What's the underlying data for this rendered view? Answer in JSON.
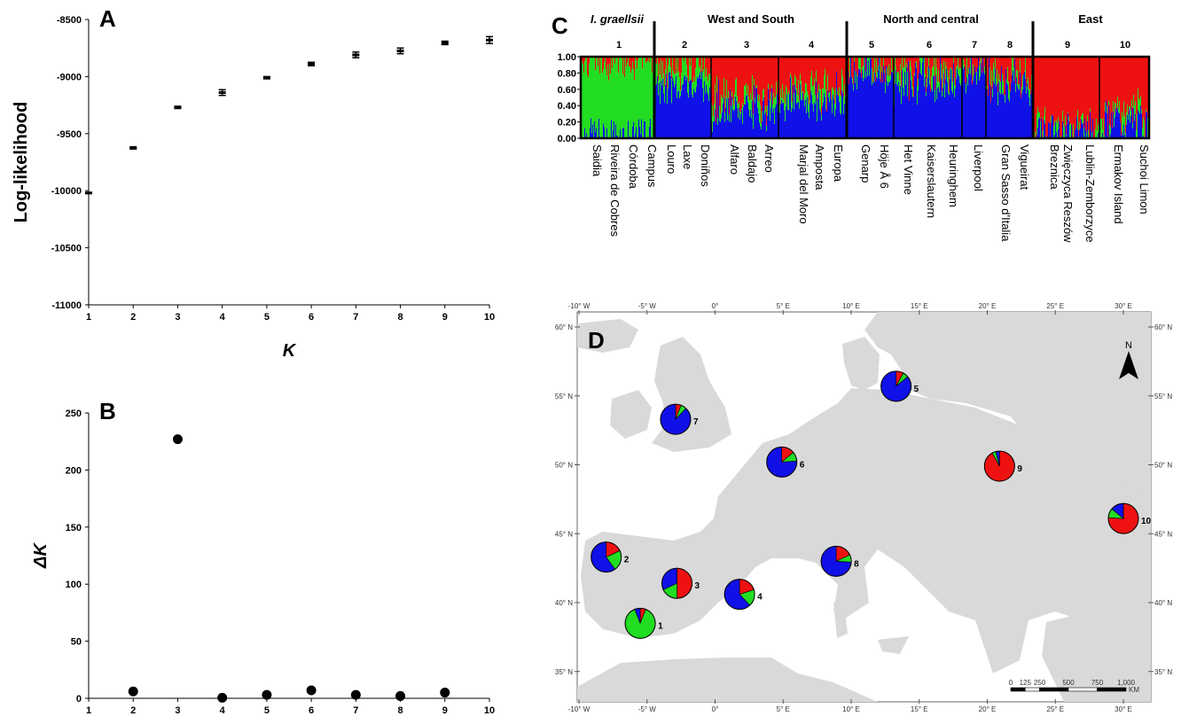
{
  "panels": {
    "a": {
      "letter": "A"
    },
    "b": {
      "letter": "B"
    },
    "c": {
      "letter": "C"
    },
    "d": {
      "letter": "D"
    }
  },
  "chart_data": [
    {
      "panel": "A",
      "type": "scatter",
      "xlabel": "K",
      "ylabel": "Log-likelihood",
      "x": [
        1,
        2,
        3,
        4,
        5,
        6,
        7,
        8,
        9,
        10
      ],
      "y": [
        -10020,
        -9625,
        -9270,
        -9140,
        -9010,
        -8890,
        -8810,
        -8775,
        -8705,
        -8680
      ],
      "error": [
        5,
        10,
        10,
        25,
        10,
        15,
        25,
        25,
        15,
        30
      ],
      "xlim": [
        1,
        10
      ],
      "ylim": [
        -11000,
        -8500
      ],
      "xticks": [
        "1",
        "2",
        "3",
        "4",
        "5",
        "6",
        "7",
        "8",
        "9",
        "10"
      ],
      "yticks": [
        "-11000",
        "-10500",
        "-10000",
        "-9500",
        "-9000",
        "-8500"
      ],
      "ytick_values": [
        -11000,
        -10500,
        -10000,
        -9500,
        -9000,
        -8500
      ],
      "grid": false
    },
    {
      "panel": "B",
      "type": "scatter",
      "xlabel": "",
      "ylabel": "ΔK",
      "x": [
        2,
        3,
        4,
        5,
        6,
        7,
        8,
        9
      ],
      "y": [
        6,
        227,
        0.5,
        3,
        7,
        3,
        2,
        5
      ],
      "xlim": [
        1,
        10
      ],
      "ylim": [
        0,
        250
      ],
      "xticks": [
        "1",
        "2",
        "3",
        "4",
        "5",
        "6",
        "7",
        "8",
        "9",
        "10"
      ],
      "yticks": [
        "0",
        "50",
        "100",
        "150",
        "200",
        "250"
      ],
      "ytick_values": [
        0,
        50,
        100,
        150,
        200,
        250
      ],
      "grid": false
    },
    {
      "panel": "C",
      "type": "bar",
      "stacked": true,
      "yticks": [
        "0.00",
        "0.20",
        "0.40",
        "0.60",
        "0.80",
        "1.00"
      ],
      "ytick_values": [
        0,
        0.2,
        0.4,
        0.6,
        0.8,
        1.0
      ],
      "ylim": [
        0,
        1
      ],
      "cluster_colors": {
        "blue": "#1010e8",
        "green": "#22dd22",
        "red": "#ee1111"
      },
      "groups": [
        {
          "name": "I. graellsii",
          "italic": true
        },
        {
          "name": "West and South"
        },
        {
          "name": "North and central"
        },
        {
          "name": "East"
        }
      ],
      "populations": [
        {
          "number": "1",
          "mean": {
            "blue": 0.03,
            "green": 0.92,
            "red": 0.05
          }
        },
        {
          "number": "2",
          "mean": {
            "blue": 0.62,
            "green": 0.22,
            "red": 0.16
          }
        },
        {
          "number": "3",
          "mean": {
            "blue": 0.35,
            "green": 0.15,
            "red": 0.5
          }
        },
        {
          "number": "4",
          "mean": {
            "blue": 0.45,
            "green": 0.15,
            "red": 0.4
          }
        },
        {
          "number": "5",
          "mean": {
            "blue": 0.8,
            "green": 0.08,
            "red": 0.12
          }
        },
        {
          "number": "6",
          "mean": {
            "blue": 0.65,
            "green": 0.15,
            "red": 0.2
          }
        },
        {
          "number": "7",
          "mean": {
            "blue": 0.8,
            "green": 0.1,
            "red": 0.1
          }
        },
        {
          "number": "8",
          "mean": {
            "blue": 0.65,
            "green": 0.1,
            "red": 0.25
          }
        },
        {
          "number": "9",
          "mean": {
            "blue": 0.1,
            "green": 0.08,
            "red": 0.82
          }
        },
        {
          "number": "10",
          "mean": {
            "blue": 0.2,
            "green": 0.12,
            "red": 0.68
          }
        }
      ],
      "site_labels": [
        "Saidia",
        "Riveira de Cobres",
        "Córdoba",
        "Campus",
        "Louro",
        "Laxe",
        "Doniños",
        "Alfaro",
        "Baldajo",
        "Arreo",
        "Marjal del Moro",
        "Amposta",
        "Europa",
        "Genarp",
        "Höje Å 6",
        "Het Vinne",
        "Kaiserslautern",
        "Heuringhem",
        "Liverpool",
        "Gran Sasso d'Italia",
        "Vigueirat",
        "Breznica",
        "Zwięczyca Reszów",
        "Lublin-Zemborzyce",
        "Ermakov Island",
        "Suchoi Limon"
      ]
    },
    {
      "panel": "D",
      "type": "pie",
      "north_label": "N",
      "lon_ticks": [
        "-10° W",
        "-5° W",
        "0°",
        "5° E",
        "10° E",
        "15° E",
        "20° E",
        "25° E",
        "30° E"
      ],
      "lat_ticks": [
        "60° N",
        "55° N",
        "50° N",
        "45° N",
        "40° N",
        "35° N"
      ],
      "lon_values": [
        -10,
        -5,
        0,
        5,
        10,
        15,
        20,
        25,
        30
      ],
      "lat_values": [
        60,
        55,
        50,
        45,
        40,
        35
      ],
      "scale_labels": [
        "0",
        "125",
        "250",
        "500",
        "750",
        "1,000"
      ],
      "scale_unit": "KM",
      "pies": [
        {
          "label": "1",
          "lon": -5.5,
          "lat": 38.5,
          "blue": 0.06,
          "green": 0.88,
          "red": 0.06
        },
        {
          "label": "2",
          "lon": -8.0,
          "lat": 43.3,
          "blue": 0.6,
          "green": 0.22,
          "red": 0.18
        },
        {
          "label": "3",
          "lon": -2.8,
          "lat": 41.4,
          "blue": 0.32,
          "green": 0.18,
          "red": 0.5
        },
        {
          "label": "4",
          "lon": 1.8,
          "lat": 40.6,
          "blue": 0.62,
          "green": 0.18,
          "red": 0.2
        },
        {
          "label": "5",
          "lon": 13.3,
          "lat": 55.7,
          "blue": 0.86,
          "green": 0.06,
          "red": 0.08
        },
        {
          "label": "6",
          "lon": 4.9,
          "lat": 50.2,
          "blue": 0.76,
          "green": 0.1,
          "red": 0.14
        },
        {
          "label": "7",
          "lon": -2.9,
          "lat": 53.3,
          "blue": 0.88,
          "green": 0.06,
          "red": 0.06
        },
        {
          "label": "8",
          "lon": 8.9,
          "lat": 43.0,
          "blue": 0.74,
          "green": 0.08,
          "red": 0.18
        },
        {
          "label": "9",
          "lon": 20.9,
          "lat": 49.9,
          "blue": 0.04,
          "green": 0.04,
          "red": 0.92
        },
        {
          "label": "10",
          "lon": 30.0,
          "lat": 46.1,
          "blue": 0.14,
          "green": 0.1,
          "red": 0.76
        }
      ]
    }
  ]
}
